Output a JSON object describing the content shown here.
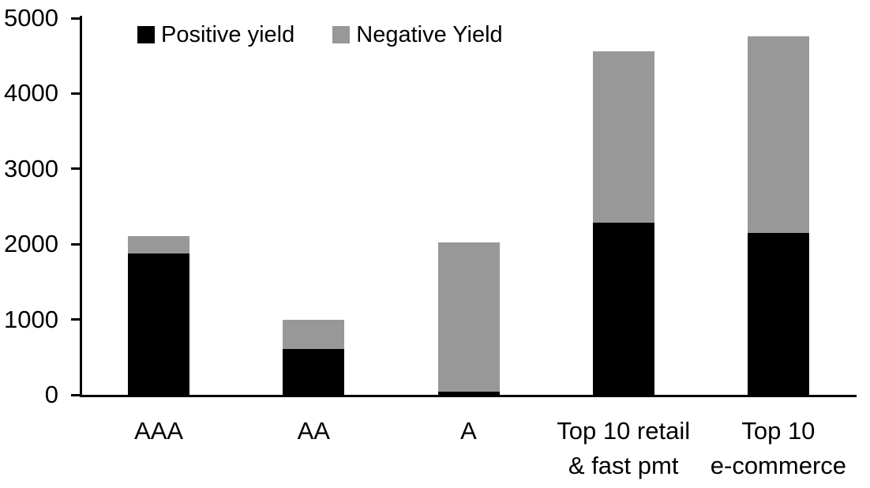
{
  "chart_data": {
    "type": "bar",
    "stacked": true,
    "title": "",
    "xlabel": "",
    "ylabel": "",
    "categories": [
      "AAA",
      "AA",
      "A",
      "Top 10 retail & fast pmt",
      "Top 10 e-commerce"
    ],
    "category_label_lines": [
      [
        "AAA"
      ],
      [
        "AA"
      ],
      [
        "A"
      ],
      [
        "Top 10 retail",
        "& fast pmt"
      ],
      [
        "Top 10",
        "e-commerce"
      ]
    ],
    "series": [
      {
        "name": "Positive yield",
        "color": "#000000",
        "values": [
          1880,
          610,
          40,
          2290,
          2150
        ]
      },
      {
        "name": "Negative Yield",
        "color": "#989898",
        "values": [
          230,
          390,
          1985,
          2270,
          2610
        ]
      }
    ],
    "stack_totals": [
      2110,
      1000,
      2025,
      4560,
      4760
    ],
    "ylim": [
      0,
      5000
    ],
    "yticks": [
      0,
      1000,
      2000,
      3000,
      4000,
      5000
    ],
    "grid": false,
    "legend_position": "top-inside",
    "axis_color": "#000000",
    "background_color": "#ffffff"
  }
}
